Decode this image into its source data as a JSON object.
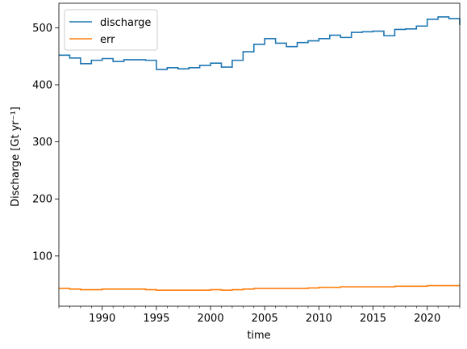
{
  "chart_data": {
    "type": "line",
    "step": "post",
    "xlabel": "time",
    "ylabel": "Discharge [Gt yr⁻¹]",
    "xlim": [
      1986,
      2023
    ],
    "ylim": [
      12,
      543
    ],
    "xticks": [
      1990,
      1995,
      2000,
      2005,
      2010,
      2015,
      2020
    ],
    "yticks": [
      100,
      200,
      300,
      400,
      500
    ],
    "legend_position": "upper-left",
    "series": [
      {
        "name": "discharge",
        "color": "#1f77b4",
        "x": [
          1986,
          1987,
          1988,
          1989,
          1990,
          1991,
          1992,
          1993,
          1994,
          1995,
          1996,
          1997,
          1998,
          1999,
          2000,
          2001,
          2002,
          2003,
          2004,
          2005,
          2006,
          2007,
          2008,
          2009,
          2010,
          2011,
          2012,
          2013,
          2014,
          2015,
          2016,
          2017,
          2018,
          2019,
          2020,
          2021,
          2022,
          2023
        ],
        "values": [
          452,
          447,
          437,
          443,
          446,
          441,
          444,
          444,
          443,
          427,
          430,
          428,
          430,
          434,
          438,
          431,
          443,
          458,
          471,
          481,
          473,
          467,
          474,
          477,
          481,
          487,
          483,
          492,
          493,
          494,
          486,
          497,
          498,
          503,
          515,
          519,
          516,
          505
        ]
      },
      {
        "name": "err",
        "color": "#ff7f0e",
        "x": [
          1986,
          1987,
          1988,
          1989,
          1990,
          1991,
          1992,
          1993,
          1994,
          1995,
          1996,
          1997,
          1998,
          1999,
          2000,
          2001,
          2002,
          2003,
          2004,
          2005,
          2006,
          2007,
          2008,
          2009,
          2010,
          2011,
          2012,
          2013,
          2014,
          2015,
          2016,
          2017,
          2018,
          2019,
          2020,
          2021,
          2022,
          2023
        ],
        "values": [
          43,
          42,
          41,
          41,
          42,
          42,
          42,
          42,
          41,
          40,
          40,
          40,
          40,
          40,
          41,
          40,
          41,
          42,
          43,
          43,
          43,
          43,
          43,
          44,
          45,
          45,
          46,
          46,
          46,
          46,
          46,
          47,
          47,
          47,
          48,
          48,
          48,
          48
        ]
      }
    ]
  },
  "colors": {
    "axes": "#000000",
    "background": "#ffffff"
  }
}
